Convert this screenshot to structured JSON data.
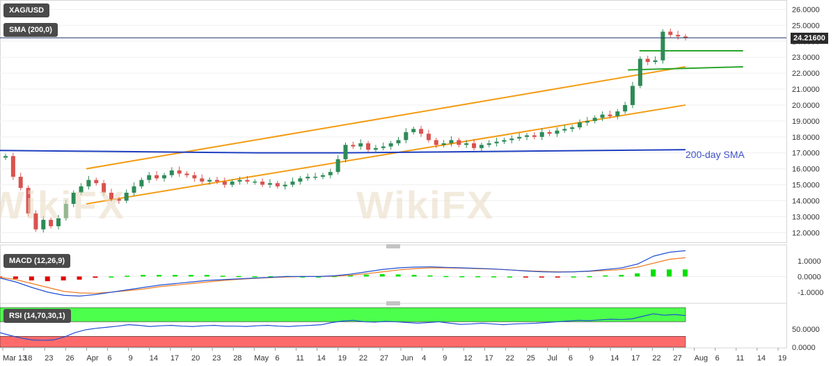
{
  "symbol": "XAG/USD",
  "indicators": {
    "sma": "SMA (200,0)",
    "macd": "MACD (12,26,9)",
    "rsi": "RSI (14,70,30,1)"
  },
  "current_price": "24.21600",
  "sma_annotation": "200-day SMA",
  "watermark": "WikiFX",
  "colors": {
    "bull": "#2e8b57",
    "bear": "#d9534f",
    "channel": "#f39c12",
    "sma": "#1f3fbf",
    "support": "#2aa52a",
    "macd_line": "#1f4fd1",
    "signal_line": "#f07a22",
    "hist_pos": "#00e000",
    "hist_neg": "#e00000",
    "rsi_overbought": "#4dff4d",
    "rsi_oversold": "#ff6b6b",
    "rsi_line": "#1f4fd1"
  },
  "chart_data": [
    {
      "type": "candlestick",
      "title": "XAG/USD",
      "x_ticks": [
        "Mar 13",
        "18",
        "23",
        "26",
        "Apr",
        "6",
        "9",
        "14",
        "17",
        "20",
        "23",
        "28",
        "May",
        "6",
        "11",
        "14",
        "19",
        "22",
        "27",
        "Jun",
        "4",
        "9",
        "12",
        "17",
        "22",
        "25",
        "Jul",
        "6",
        "9",
        "14",
        "17",
        "22",
        "27",
        "Aug",
        "6",
        "11",
        "14",
        "19"
      ],
      "y_ticks": [
        "12.0000",
        "13.0000",
        "14.0000",
        "15.0000",
        "16.0000",
        "17.0000",
        "18.0000",
        "19.0000",
        "20.0000",
        "21.0000",
        "22.0000",
        "23.0000",
        "24.0000",
        "25.0000",
        "26.0000"
      ],
      "ylim": [
        11.4,
        26.5
      ],
      "closes": [
        16.8,
        15.5,
        14.8,
        13.2,
        12.2,
        12.8,
        12.4,
        12.9,
        13.8,
        14.5,
        14.9,
        15.3,
        15.1,
        14.5,
        14.1,
        14.0,
        14.5,
        14.9,
        15.3,
        15.6,
        15.4,
        15.6,
        15.9,
        15.7,
        15.6,
        15.4,
        15.2,
        15.3,
        15.2,
        15.0,
        15.2,
        15.3,
        15.2,
        15.2,
        15.0,
        15.1,
        14.9,
        15.0,
        15.2,
        15.4,
        15.5,
        15.5,
        15.6,
        15.8,
        16.6,
        17.5,
        17.4,
        17.6,
        17.2,
        17.3,
        17.4,
        17.6,
        17.8,
        18.3,
        18.5,
        18.2,
        17.8,
        17.5,
        17.6,
        17.8,
        17.5,
        17.6,
        17.3,
        17.5,
        17.6,
        17.7,
        17.8,
        17.9,
        18.0,
        18.1,
        18.0,
        18.3,
        18.2,
        18.4,
        18.5,
        18.6,
        18.9,
        19.0,
        19.2,
        19.4,
        19.3,
        19.6,
        20.0,
        21.2,
        22.9,
        22.7,
        22.8,
        24.6,
        24.4,
        24.3,
        24.2
      ],
      "sma200": [
        17.15,
        17.1,
        17.05,
        17.0,
        17.0,
        17.05,
        17.1,
        17.15,
        17.2
      ],
      "channel_upper": {
        "start": [
          14,
          16.0
        ],
        "end": [
          118,
          22.4
        ]
      },
      "channel_lower": {
        "start": [
          14,
          13.8
        ],
        "end": [
          118,
          20.0
        ]
      },
      "support_1": {
        "start": [
          110,
          23.4
        ],
        "end": [
          128,
          23.4
        ]
      },
      "support_2": {
        "start": [
          108,
          22.2
        ],
        "end": [
          128,
          22.4
        ]
      },
      "current_price": 24.216
    },
    {
      "type": "macd",
      "title": "MACD (12,26,9)",
      "y_ticks": [
        "1.0000",
        "0.0000",
        "-1.0000"
      ],
      "ylim": [
        -1.45,
        1.75
      ],
      "macd": [
        -0.1,
        -0.35,
        -0.7,
        -1.0,
        -1.2,
        -1.25,
        -1.15,
        -1.0,
        -0.85,
        -0.7,
        -0.55,
        -0.45,
        -0.35,
        -0.25,
        -0.2,
        -0.15,
        -0.1,
        -0.05,
        0.0,
        0.0,
        0.0,
        0.05,
        0.15,
        0.3,
        0.45,
        0.55,
        0.6,
        0.62,
        0.58,
        0.55,
        0.52,
        0.48,
        0.42,
        0.35,
        0.3,
        0.28,
        0.3,
        0.35,
        0.45,
        0.55,
        0.8,
        1.3,
        1.55,
        1.65
      ],
      "signal": [
        -0.05,
        -0.2,
        -0.45,
        -0.7,
        -0.95,
        -1.05,
        -1.07,
        -1.0,
        -0.9,
        -0.8,
        -0.65,
        -0.55,
        -0.45,
        -0.35,
        -0.25,
        -0.18,
        -0.12,
        -0.07,
        -0.03,
        0.0,
        0.0,
        0.02,
        0.08,
        0.18,
        0.3,
        0.42,
        0.5,
        0.55,
        0.55,
        0.53,
        0.5,
        0.47,
        0.42,
        0.37,
        0.33,
        0.3,
        0.3,
        0.33,
        0.38,
        0.45,
        0.6,
        0.85,
        1.1,
        1.2
      ]
    },
    {
      "type": "rsi",
      "title": "RSI (14,70,30,1)",
      "y_ticks": [
        "50.0000",
        "0.0000"
      ],
      "ylim": [
        -2,
        113
      ],
      "overbought": 70,
      "oversold": 30,
      "values": [
        40,
        32,
        25,
        20,
        19,
        20,
        28,
        40,
        48,
        52,
        55,
        58,
        62,
        60,
        57,
        59,
        60,
        58,
        57,
        59,
        60,
        58,
        58,
        57,
        59,
        60,
        58,
        57,
        59,
        60,
        62,
        68,
        72,
        74,
        70,
        69,
        71,
        70,
        68,
        66,
        68,
        70,
        66,
        63,
        64,
        66,
        64,
        62,
        64,
        65,
        66,
        68,
        70,
        72,
        74,
        73,
        75,
        77,
        76,
        78,
        85,
        92,
        88,
        90,
        87
      ]
    }
  ]
}
